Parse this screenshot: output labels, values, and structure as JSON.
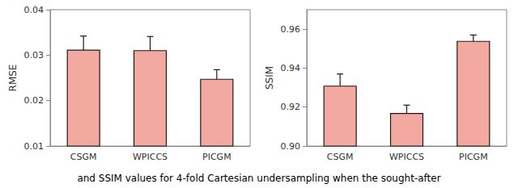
{
  "chart_data": [
    {
      "type": "bar",
      "categories": [
        "CSGM",
        "WPICCS",
        "PICGM"
      ],
      "values": [
        0.0312,
        0.0311,
        0.0248
      ],
      "errors": [
        0.003,
        0.003,
        0.002
      ],
      "ylabel": "RMSE",
      "ylim": [
        0.01,
        0.04
      ],
      "yticks": [
        0.01,
        0.02,
        0.03,
        0.04
      ],
      "color": "#f4a9a0",
      "grid": false,
      "annotation": "and SSIM values for 4-fold Cartesian undersampling when the sought-after"
    },
    {
      "type": "bar",
      "categories": [
        "CSGM",
        "WPICCS",
        "PICGM"
      ],
      "values": [
        0.931,
        0.917,
        0.954
      ],
      "errors": [
        0.006,
        0.004,
        0.003
      ],
      "ylabel": "SSIM",
      "ylim": [
        0.9,
        0.97
      ],
      "yticks": [
        {
          "value": 0.9,
          "label": "0.90"
        },
        {
          "value": 0.92,
          "label": "0.92"
        },
        {
          "value": 0.94,
          "label": "0.94"
        },
        {
          "value": 0.96,
          "label": "0.96"
        }
      ],
      "color": "#f4a9a0",
      "grid": false
    }
  ]
}
